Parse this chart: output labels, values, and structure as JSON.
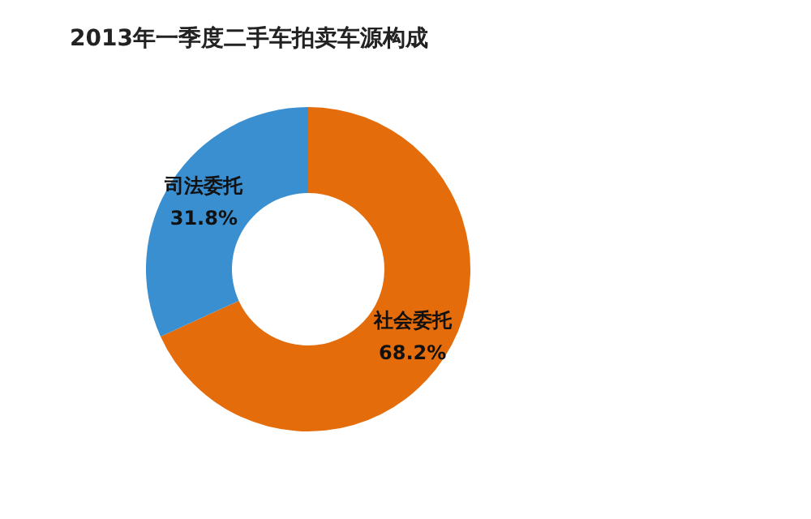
{
  "chart_data": {
    "type": "donut",
    "title": "2013年一季度二手车拍卖车源构成",
    "categories": [
      "社会委托",
      "司法委托"
    ],
    "values": [
      68.2,
      31.8
    ],
    "colors": [
      "#e46c0a",
      "#3a8fd0"
    ],
    "value_labels": [
      "68.2%",
      "31.8%"
    ],
    "legend": false
  }
}
